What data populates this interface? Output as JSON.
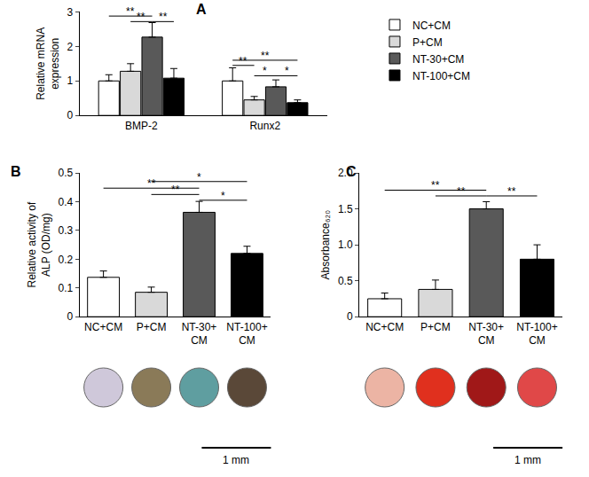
{
  "chart_data": [
    {
      "panel": "A",
      "type": "bar",
      "ylabel": "Relative mRNA\nexpression",
      "categories": [
        "BMP-2",
        "Runx2"
      ],
      "series": [
        {
          "name": "NC+CM",
          "color": "#ffffff",
          "values": [
            1.0,
            1.0
          ],
          "errors": [
            0.18,
            0.38
          ]
        },
        {
          "name": "P+CM",
          "color": "#d9d9d9",
          "values": [
            1.28,
            0.45
          ],
          "errors": [
            0.22,
            0.1
          ]
        },
        {
          "name": "NT-30+CM",
          "color": "#595959",
          "values": [
            2.27,
            0.83
          ],
          "errors": [
            0.42,
            0.2
          ]
        },
        {
          "name": "NT-100+CM",
          "color": "#000000",
          "values": [
            1.08,
            0.37
          ],
          "errors": [
            0.28,
            0.08
          ]
        }
      ],
      "ylim": [
        0,
        3
      ],
      "yticks": [
        0,
        1,
        2,
        3
      ],
      "legend": "right",
      "grid": false,
      "significance": [
        {
          "category": "BMP-2",
          "pair": [
            "NC+CM",
            "NT-30+CM"
          ],
          "y": 2.88,
          "label": "**"
        },
        {
          "category": "BMP-2",
          "pair": [
            "P+CM",
            "NT-30+CM"
          ],
          "y": 2.72,
          "label": "**"
        },
        {
          "category": "BMP-2",
          "pair": [
            "NT-30+CM",
            "NT-100+CM"
          ],
          "y": 2.72,
          "label": "**"
        },
        {
          "category": "Runx2",
          "pair": [
            "NC+CM",
            "NT-100+CM"
          ],
          "y": 1.6,
          "label": "**"
        },
        {
          "category": "Runx2",
          "pair": [
            "NC+CM",
            "P+CM"
          ],
          "y": 1.45,
          "label": "**"
        },
        {
          "category": "Runx2",
          "pair": [
            "P+CM",
            "NT-30+CM"
          ],
          "y": 1.15,
          "label": "*"
        },
        {
          "category": "Runx2",
          "pair": [
            "NT-30+CM",
            "NT-100+CM"
          ],
          "y": 1.15,
          "label": "*"
        }
      ]
    },
    {
      "panel": "B",
      "type": "bar",
      "ylabel": "Relative activity of\nALP (OD/mg)",
      "categories": [
        "NC+CM",
        "P+CM",
        "NT-30+CM",
        "NT-100+CM"
      ],
      "values": [
        0.137,
        0.085,
        0.363,
        0.22
      ],
      "errors": [
        0.022,
        0.018,
        0.038,
        0.025
      ],
      "colors": [
        "#ffffff",
        "#d9d9d9",
        "#595959",
        "#000000"
      ],
      "ylim": [
        0,
        0.5
      ],
      "yticks": [
        0,
        0.1,
        0.2,
        0.3,
        0.4,
        0.5
      ],
      "grid": false,
      "significance": [
        {
          "pair": [
            "P+CM",
            "NT-100+CM"
          ],
          "y": 0.47,
          "label": "*"
        },
        {
          "pair": [
            "NC+CM",
            "NT-30+CM"
          ],
          "y": 0.447,
          "label": "**"
        },
        {
          "pair": [
            "P+CM",
            "NT-30+CM"
          ],
          "y": 0.425,
          "label": "**"
        },
        {
          "pair": [
            "NT-30+CM",
            "NT-100+CM"
          ],
          "y": 0.405,
          "label": "*"
        }
      ],
      "scale_bar": "1 mm"
    },
    {
      "panel": "C",
      "type": "bar",
      "ylabel": "Absorbance₆₂₀",
      "categories": [
        "NC+CM",
        "P+CM",
        "NT-30+CM",
        "NT-100+CM"
      ],
      "values": [
        0.25,
        0.38,
        1.5,
        0.8
      ],
      "errors": [
        0.08,
        0.13,
        0.1,
        0.2
      ],
      "colors": [
        "#ffffff",
        "#d9d9d9",
        "#595959",
        "#000000"
      ],
      "ylim": [
        0,
        2
      ],
      "yticks": [
        0,
        {
          "value": 0.5,
          "label": "0.5"
        },
        {
          "value": 1,
          "label": "1.0"
        },
        {
          "value": 1.5,
          "label": "1.5"
        },
        {
          "value": 2,
          "label": "2.0"
        }
      ],
      "grid": false,
      "significance": [
        {
          "pair": [
            "NC+CM",
            "NT-30+CM"
          ],
          "y": 1.76,
          "label": "**"
        },
        {
          "pair": [
            "P+CM",
            "NT-30+CM"
          ],
          "y": 1.68,
          "label": "**"
        },
        {
          "pair": [
            "NT-30+CM",
            "NT-100+CM"
          ],
          "y": 1.68,
          "label": "**"
        }
      ],
      "scale_bar": "1 mm"
    }
  ]
}
